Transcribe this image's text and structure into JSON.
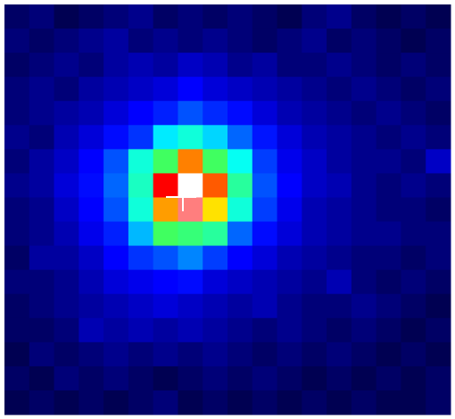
{
  "chart_data": {
    "type": "heatmap",
    "colormap": [
      [
        0,
        "#000018"
      ],
      [
        0.12,
        "#0000ff"
      ],
      [
        0.37,
        "#00ffff"
      ],
      [
        0.5,
        "#40ff60"
      ],
      [
        0.62,
        "#ffff00"
      ],
      [
        0.75,
        "#ff8000"
      ],
      [
        0.85,
        "#ff0000"
      ],
      [
        0.93,
        "#ff9090"
      ],
      [
        1,
        "#ffffff"
      ]
    ],
    "values": [
      [
        0.04,
        0.05,
        0.03,
        0.04,
        0.05,
        0.06,
        0.04,
        0.05,
        0.04,
        0.05,
        0.04,
        0.03,
        0.05,
        0.06,
        0.04,
        0.03,
        0.04,
        0.03
      ],
      [
        0.05,
        0.04,
        0.05,
        0.06,
        0.07,
        0.05,
        0.06,
        0.05,
        0.06,
        0.05,
        0.04,
        0.05,
        0.06,
        0.04,
        0.05,
        0.04,
        0.03,
        0.04
      ],
      [
        0.04,
        0.05,
        0.06,
        0.05,
        0.07,
        0.08,
        0.07,
        0.09,
        0.08,
        0.06,
        0.07,
        0.05,
        0.05,
        0.06,
        0.05,
        0.04,
        0.05,
        0.04
      ],
      [
        0.05,
        0.06,
        0.05,
        0.07,
        0.08,
        0.09,
        0.1,
        0.12,
        0.1,
        0.09,
        0.08,
        0.07,
        0.06,
        0.05,
        0.06,
        0.05,
        0.04,
        0.05
      ],
      [
        0.05,
        0.06,
        0.07,
        0.08,
        0.1,
        0.12,
        0.15,
        0.2,
        0.16,
        0.13,
        0.1,
        0.08,
        0.07,
        0.06,
        0.05,
        0.06,
        0.05,
        0.04
      ],
      [
        0.06,
        0.05,
        0.08,
        0.1,
        0.13,
        0.17,
        0.35,
        0.4,
        0.33,
        0.22,
        0.14,
        0.1,
        0.08,
        0.07,
        0.06,
        0.05,
        0.06,
        0.05
      ],
      [
        0.05,
        0.07,
        0.09,
        0.12,
        0.2,
        0.4,
        0.5,
        0.75,
        0.5,
        0.38,
        0.18,
        0.11,
        0.09,
        0.07,
        0.06,
        0.06,
        0.05,
        0.09
      ],
      [
        0.06,
        0.07,
        0.1,
        0.13,
        0.22,
        0.42,
        0.85,
        1.0,
        0.78,
        0.45,
        0.2,
        0.12,
        0.09,
        0.08,
        0.06,
        0.05,
        0.06,
        0.05
      ],
      [
        0.05,
        0.06,
        0.09,
        0.12,
        0.2,
        0.4,
        0.72,
        0.92,
        0.65,
        0.4,
        0.18,
        0.11,
        0.08,
        0.07,
        0.06,
        0.05,
        0.05,
        0.04
      ],
      [
        0.05,
        0.06,
        0.08,
        0.11,
        0.15,
        0.3,
        0.5,
        0.48,
        0.45,
        0.22,
        0.13,
        0.1,
        0.08,
        0.07,
        0.06,
        0.06,
        0.05,
        0.05
      ],
      [
        0.04,
        0.07,
        0.07,
        0.09,
        0.12,
        0.17,
        0.2,
        0.25,
        0.18,
        0.12,
        0.1,
        0.08,
        0.07,
        0.06,
        0.05,
        0.05,
        0.04,
        0.05
      ],
      [
        0.05,
        0.05,
        0.06,
        0.08,
        0.1,
        0.11,
        0.12,
        0.13,
        0.1,
        0.09,
        0.08,
        0.07,
        0.06,
        0.08,
        0.05,
        0.04,
        0.05,
        0.04
      ],
      [
        0.04,
        0.05,
        0.06,
        0.07,
        0.08,
        0.09,
        0.1,
        0.09,
        0.08,
        0.07,
        0.08,
        0.06,
        0.05,
        0.05,
        0.06,
        0.05,
        0.04,
        0.03
      ],
      [
        0.04,
        0.04,
        0.05,
        0.08,
        0.07,
        0.08,
        0.07,
        0.08,
        0.07,
        0.06,
        0.05,
        0.06,
        0.05,
        0.04,
        0.05,
        0.04,
        0.03,
        0.04
      ],
      [
        0.03,
        0.05,
        0.04,
        0.05,
        0.06,
        0.05,
        0.06,
        0.05,
        0.06,
        0.05,
        0.04,
        0.05,
        0.04,
        0.05,
        0.04,
        0.03,
        0.04,
        0.03
      ],
      [
        0.04,
        0.03,
        0.05,
        0.04,
        0.05,
        0.04,
        0.03,
        0.04,
        0.05,
        0.04,
        0.05,
        0.04,
        0.03,
        0.04,
        0.03,
        0.04,
        0.03,
        0.04
      ],
      [
        0.03,
        0.04,
        0.03,
        0.04,
        0.03,
        0.04,
        0.05,
        0.03,
        0.04,
        0.03,
        0.04,
        0.03,
        0.04,
        0.03,
        0.04,
        0.03,
        0.03,
        0.04
      ]
    ]
  }
}
